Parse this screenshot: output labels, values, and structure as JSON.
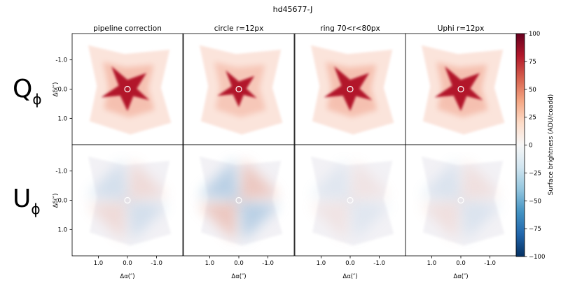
{
  "chart_data": {
    "type": "heatmap",
    "title": "hd45677-J",
    "columns": [
      "pipeline correction",
      "circle r=12px",
      "ring 70<r<80px",
      "Uphi r=12px"
    ],
    "rows": [
      {
        "label": "Q",
        "subscript": "ϕ",
        "pattern": "positive-star"
      },
      {
        "label": "U",
        "subscript": "ϕ",
        "pattern": "quadrupole"
      }
    ],
    "xlabel": "Δα(″)",
    "ylabel": "Δδ(″)",
    "x_ticks": [
      "1.0",
      "0.0",
      "-1.0"
    ],
    "y_ticks": [
      "1.0",
      "0.0",
      "-1.0"
    ],
    "axis_range": [
      1.9,
      -1.9
    ],
    "colorbar": {
      "label": "Surface brightness (ADU/coadd)",
      "ticks": [
        "100",
        "75",
        "50",
        "25",
        "0",
        "−25",
        "−50",
        "−75",
        "−100"
      ],
      "range": [
        -100,
        100
      ],
      "colormap": [
        "#67001f",
        "#b2182b",
        "#d6604d",
        "#f4a582",
        "#fddbc7",
        "#f7f7f7",
        "#d1e5f0",
        "#92c5de",
        "#4393c3",
        "#2166ac",
        "#053061"
      ]
    }
  }
}
